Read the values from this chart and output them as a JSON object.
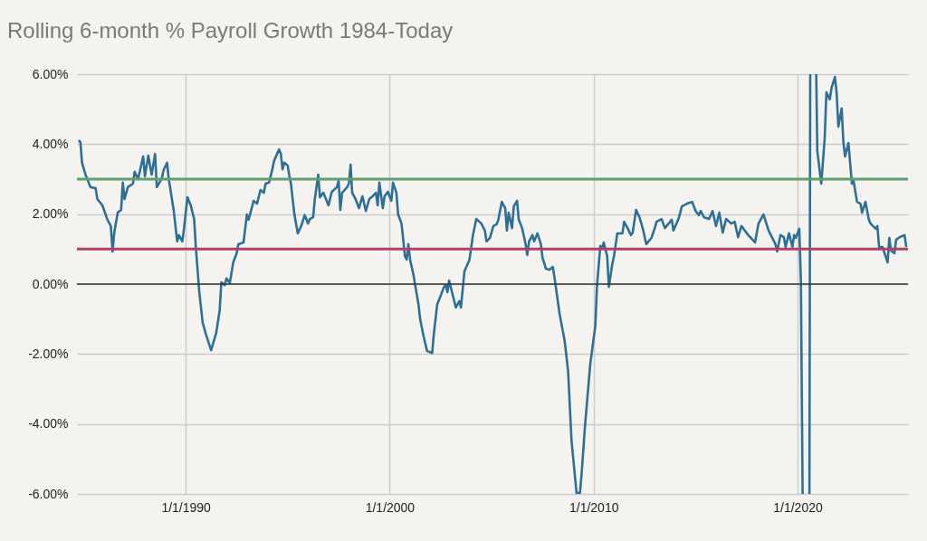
{
  "chart_data": {
    "type": "line",
    "title": "Rolling 6-month % Payroll Growth 1984-Today",
    "x": [
      "1984-10",
      "1984-11",
      "1984-12",
      "1985-02",
      "1985-05",
      "1985-08",
      "1985-09",
      "1985-12",
      "1986-03",
      "1986-05",
      "1986-06",
      "1986-07",
      "1986-09",
      "1986-11",
      "1986-12",
      "1987-01",
      "1987-03",
      "1987-06",
      "1987-07",
      "1987-09",
      "1987-12",
      "1988-01",
      "1988-03",
      "1988-05",
      "1988-07",
      "1988-08",
      "1988-11",
      "1988-12",
      "1989-02",
      "1989-03",
      "1989-06",
      "1989-08",
      "1989-09",
      "1989-11",
      "1989-12",
      "1990-02",
      "1990-04",
      "1990-06",
      "1990-07",
      "1990-09",
      "1990-11",
      "1991-01",
      "1991-04",
      "1991-07",
      "1991-09",
      "1991-10",
      "1991-12",
      "1992-01",
      "1992-03",
      "1992-05",
      "1992-07",
      "1992-08",
      "1992-11",
      "1993-01",
      "1993-02",
      "1993-05",
      "1993-07",
      "1993-09",
      "1993-11",
      "1993-12",
      "1994-02",
      "1994-04",
      "1994-05",
      "1994-08",
      "1994-09",
      "1994-10",
      "1994-11",
      "1995-01",
      "1995-02",
      "1995-03",
      "1995-05",
      "1995-07",
      "1995-09",
      "1995-11",
      "1996-01",
      "1996-02",
      "1996-04",
      "1996-05",
      "1996-07",
      "1996-08",
      "1996-10",
      "1997-01",
      "1997-03",
      "1997-06",
      "1997-07",
      "1997-08",
      "1997-09",
      "1997-12",
      "1998-01",
      "1998-02",
      "1998-03",
      "1998-05",
      "1998-07",
      "1998-09",
      "1998-11",
      "1999-01",
      "1999-03",
      "1999-05",
      "1999-06",
      "1999-07",
      "1999-09",
      "1999-10",
      "1999-12",
      "2000-02",
      "2000-03",
      "2000-05",
      "2000-06",
      "2000-08",
      "2000-10",
      "2000-11",
      "2000-12",
      "2001-01",
      "2001-03",
      "2001-06",
      "2001-07",
      "2001-09",
      "2001-11",
      "2002-02",
      "2002-03",
      "2002-05",
      "2002-07",
      "2002-09",
      "2002-10",
      "2002-11",
      "2002-12",
      "2003-04",
      "2003-06",
      "2003-07",
      "2003-09",
      "2003-12",
      "2004-02",
      "2004-04",
      "2004-07",
      "2004-09",
      "2004-10",
      "2004-11",
      "2004-12",
      "2005-02",
      "2005-04",
      "2005-05",
      "2005-07",
      "2005-09",
      "2005-10",
      "2005-11",
      "2006-01",
      "2006-02",
      "2006-04",
      "2006-05",
      "2006-07",
      "2006-09",
      "2006-10",
      "2006-11",
      "2007-01",
      "2007-02",
      "2007-04",
      "2007-06",
      "2007-07",
      "2007-09",
      "2007-11",
      "2008-01",
      "2008-02",
      "2008-05",
      "2008-08",
      "2008-10",
      "2008-12",
      "2009-03",
      "2009-05",
      "2009-06",
      "2009-08",
      "2009-11",
      "2010-02",
      "2010-03",
      "2010-05",
      "2010-06",
      "2010-07",
      "2010-09",
      "2010-10",
      "2010-12",
      "2011-01",
      "2011-03",
      "2011-06",
      "2011-07",
      "2011-09",
      "2011-11",
      "2011-12",
      "2012-02",
      "2012-04",
      "2012-06",
      "2012-08",
      "2012-11",
      "2013-01",
      "2013-02",
      "2013-05",
      "2013-07",
      "2013-11",
      "2013-12",
      "2014-03",
      "2014-05",
      "2014-08",
      "2014-11",
      "2015-01",
      "2015-03",
      "2015-04",
      "2015-06",
      "2015-09",
      "2015-11",
      "2016-01",
      "2016-03",
      "2016-05",
      "2016-07",
      "2016-10",
      "2016-12",
      "2017-02",
      "2017-04",
      "2017-08",
      "2017-12",
      "2018-02",
      "2018-05",
      "2018-08",
      "2018-12",
      "2019-01",
      "2019-03",
      "2019-05",
      "2019-06",
      "2019-08",
      "2019-10",
      "2019-11",
      "2019-12",
      "2020-02",
      "2020-03",
      "2020-04",
      "2020-06",
      "2020-08",
      "2020-08-15",
      "2020-10",
      "2020-12",
      "2020-12-20",
      "2021-03",
      "2021-05",
      "2021-06",
      "2021-08",
      "2021-09",
      "2021-11",
      "2021-12",
      "2022-01",
      "2022-03",
      "2022-04",
      "2022-05",
      "2022-07",
      "2022-09",
      "2022-10",
      "2022-12",
      "2023-02",
      "2023-03",
      "2023-05",
      "2023-07",
      "2023-08",
      "2023-11",
      "2023-12",
      "2024-01",
      "2024-03",
      "2024-06",
      "2024-07",
      "2024-08",
      "2024-10",
      "2024-11",
      "2025-01",
      "2025-04",
      "2025-05"
    ],
    "series": [
      {
        "color": "#2e6f96",
        "values": [
          4.11,
          4.06,
          3.47,
          3.13,
          2.77,
          2.74,
          2.43,
          2.25,
          1.84,
          1.66,
          0.93,
          1.47,
          2.04,
          2.12,
          2.9,
          2.43,
          2.77,
          2.87,
          3.21,
          3.0,
          3.65,
          3.08,
          3.67,
          3.13,
          3.72,
          2.77,
          3.03,
          3.26,
          3.47,
          3.03,
          2.09,
          1.22,
          1.4,
          1.22,
          1.58,
          2.48,
          2.25,
          1.86,
          1.06,
          -0.23,
          -1.11,
          -1.45,
          -1.89,
          -1.4,
          -0.75,
          0.05,
          -0.03,
          0.16,
          0.03,
          0.62,
          0.88,
          1.14,
          1.19,
          1.99,
          1.84,
          2.38,
          2.3,
          2.69,
          2.61,
          2.87,
          2.9,
          3.28,
          3.52,
          3.85,
          3.72,
          3.28,
          3.47,
          3.39,
          3.08,
          2.87,
          1.99,
          1.45,
          1.66,
          1.97,
          1.73,
          1.86,
          1.91,
          2.43,
          3.13,
          2.48,
          2.61,
          2.25,
          2.64,
          2.77,
          2.95,
          2.12,
          2.61,
          2.77,
          2.87,
          3.41,
          2.61,
          2.43,
          2.17,
          2.51,
          2.09,
          2.43,
          2.51,
          2.61,
          2.25,
          2.9,
          2.17,
          2.51,
          2.64,
          2.38,
          2.9,
          2.61,
          1.99,
          1.73,
          0.8,
          0.7,
          1.14,
          0.7,
          0.28,
          -0.59,
          -1.01,
          -1.5,
          -1.91,
          -1.97,
          -1.45,
          -0.59,
          -0.34,
          -0.08,
          -0.03,
          -0.23,
          0.1,
          -0.67,
          -0.49,
          -0.67,
          0.36,
          0.7,
          1.4,
          1.86,
          1.73,
          1.53,
          1.22,
          1.27,
          1.32,
          1.66,
          1.71,
          1.84,
          2.35,
          2.17,
          1.53,
          2.04,
          1.6,
          2.22,
          2.38,
          1.84,
          1.6,
          1.14,
          0.83,
          1.22,
          1.4,
          1.22,
          1.45,
          1.14,
          0.75,
          0.44,
          0.41,
          0.49,
          0.18,
          -0.85,
          -1.63,
          -2.48,
          -4.47,
          -5.97,
          -5.97,
          -5.4,
          -4.03,
          -2.3,
          -1.19,
          -0.08,
          1.09,
          1.01,
          1.19,
          0.8,
          -0.08,
          0.57,
          0.8,
          1.45,
          1.45,
          1.78,
          1.6,
          1.4,
          1.47,
          2.12,
          1.91,
          1.58,
          1.14,
          1.32,
          1.6,
          1.78,
          1.86,
          1.6,
          1.84,
          1.53,
          1.86,
          2.22,
          2.3,
          2.35,
          2.09,
          1.97,
          2.09,
          1.91,
          1.86,
          2.09,
          1.66,
          2.04,
          1.47,
          1.86,
          1.73,
          1.78,
          1.34,
          1.66,
          1.4,
          1.19,
          1.73,
          1.99,
          1.53,
          1.14,
          0.93,
          1.4,
          1.34,
          1.06,
          1.45,
          1.06,
          1.4,
          1.32,
          1.58,
          0.1,
          -6,
          null,
          -6,
          6,
          null,
          6,
          3.8,
          2.87,
          4.16,
          5.48,
          5.28,
          5.61,
          5.92,
          5.46,
          4.5,
          5.02,
          4.06,
          3.65,
          4.03,
          2.87,
          2.95,
          2.35,
          2.3,
          2.04,
          2.35,
          1.84,
          1.73,
          1.58,
          1.66,
          1.06,
          1.06,
          0.62,
          1.32,
          0.96,
          0.88,
          1.27,
          1.34,
          1.4,
          1.06
        ]
      }
    ],
    "xlim": [
      "1984-09",
      "2025-06"
    ],
    "xticks": [
      {
        "value": "1990-01-01",
        "label": "1/1/1990"
      },
      {
        "value": "2000-01-01",
        "label": "1/1/2000"
      },
      {
        "value": "2010-01-01",
        "label": "1/1/2010"
      },
      {
        "value": "2020-01-01",
        "label": "1/1/2020"
      }
    ],
    "ylim": [
      -6,
      6
    ],
    "yticks": [
      {
        "value": -6,
        "label": "-6.00%"
      },
      {
        "value": -4,
        "label": "-4.00%"
      },
      {
        "value": -2,
        "label": "-2.00%"
      },
      {
        "value": 0,
        "label": "0.00%"
      },
      {
        "value": 2,
        "label": "2.00%"
      },
      {
        "value": 4,
        "label": "4.00%"
      },
      {
        "value": 6,
        "label": "6.00%"
      }
    ],
    "grid": true,
    "ref_lines": [
      {
        "axis": "y",
        "value": 3,
        "color": "#5f9e6e"
      },
      {
        "axis": "y",
        "value": 1,
        "color": "#b2416a"
      },
      {
        "axis": "y",
        "value": 0,
        "color": "#333333"
      }
    ]
  }
}
